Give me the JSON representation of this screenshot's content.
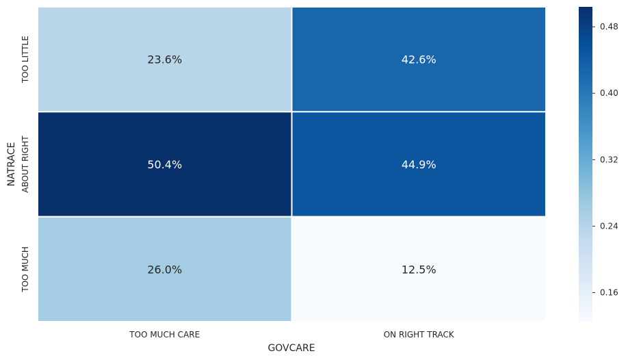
{
  "chart_data": {
    "type": "heatmap",
    "xlabel": "GOVCARE",
    "ylabel": "NATRACE",
    "x_categories": [
      "TOO MUCH CARE",
      "ON RIGHT TRACK"
    ],
    "y_categories": [
      "TOO LITTLE",
      "ABOUT RIGHT",
      "TOO MUCH"
    ],
    "values": [
      [
        0.236,
        0.426
      ],
      [
        0.504,
        0.449
      ],
      [
        0.26,
        0.125
      ]
    ],
    "cell_labels": [
      [
        "23.6%",
        "42.6%"
      ],
      [
        "50.4%",
        "44.9%"
      ],
      [
        "26.0%",
        "12.5%"
      ]
    ],
    "colormap": "Blues",
    "colorbar": {
      "range": [
        0.125,
        0.504
      ],
      "ticks": [
        0.16,
        0.24,
        0.32,
        0.4,
        0.48
      ],
      "tick_labels": [
        "0.16",
        "0.24",
        "0.32",
        "0.40",
        "0.48"
      ]
    }
  }
}
